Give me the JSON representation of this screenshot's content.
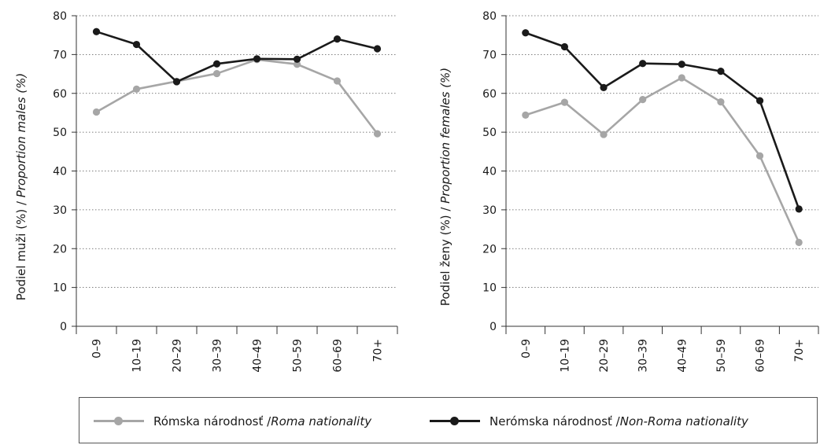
{
  "colors": {
    "roma": "#a6a6a6",
    "non_roma": "#1a1a1a",
    "grid": "#555555"
  },
  "legend": {
    "roma": {
      "plain": "Rómska národnosť / ",
      "italic": "Roma nationality"
    },
    "non_roma": {
      "plain": "Nerómska národnosť / ",
      "italic": "Non-Roma nationality"
    }
  },
  "chart_data": [
    {
      "type": "line",
      "categories": [
        "0–9",
        "10–19",
        "20–29",
        "30–39",
        "40–49",
        "50–59",
        "60–69",
        "70+"
      ],
      "ylabel": {
        "plain": "Podiel muži (%) / ",
        "italic": "Proportion males (%)"
      },
      "ylim": [
        0,
        80
      ],
      "yticks": [
        0,
        10,
        20,
        30,
        40,
        50,
        60,
        70,
        80
      ],
      "grid": true,
      "series": [
        {
          "name": "Rómska národnosť / Roma nationality",
          "key": "roma",
          "values": [
            55.2,
            61.1,
            63.1,
            65.1,
            68.7,
            67.5,
            63.2,
            49.6
          ]
        },
        {
          "name": "Nerómska národnosť / Non-Roma nationality",
          "key": "non_roma",
          "values": [
            75.9,
            72.6,
            63.0,
            67.6,
            68.9,
            68.8,
            74.0,
            71.5
          ]
        }
      ]
    },
    {
      "type": "line",
      "categories": [
        "0–9",
        "10–19",
        "20–29",
        "30–39",
        "40–49",
        "50–59",
        "60–69",
        "70+"
      ],
      "ylabel": {
        "plain": "Podiel ženy (%) / ",
        "italic": "Proportion females (%)"
      },
      "ylim": [
        0,
        80
      ],
      "yticks": [
        0,
        10,
        20,
        30,
        40,
        50,
        60,
        70,
        80
      ],
      "grid": true,
      "series": [
        {
          "name": "Rómska národnosť / Roma nationality",
          "key": "roma",
          "values": [
            54.4,
            57.7,
            49.4,
            58.4,
            64.0,
            57.8,
            43.9,
            21.6
          ]
        },
        {
          "name": "Nerómska národnosť / Non-Roma nationality",
          "key": "non_roma",
          "values": [
            75.6,
            72.0,
            61.5,
            67.7,
            67.5,
            65.7,
            58.1,
            30.2
          ]
        }
      ]
    }
  ]
}
